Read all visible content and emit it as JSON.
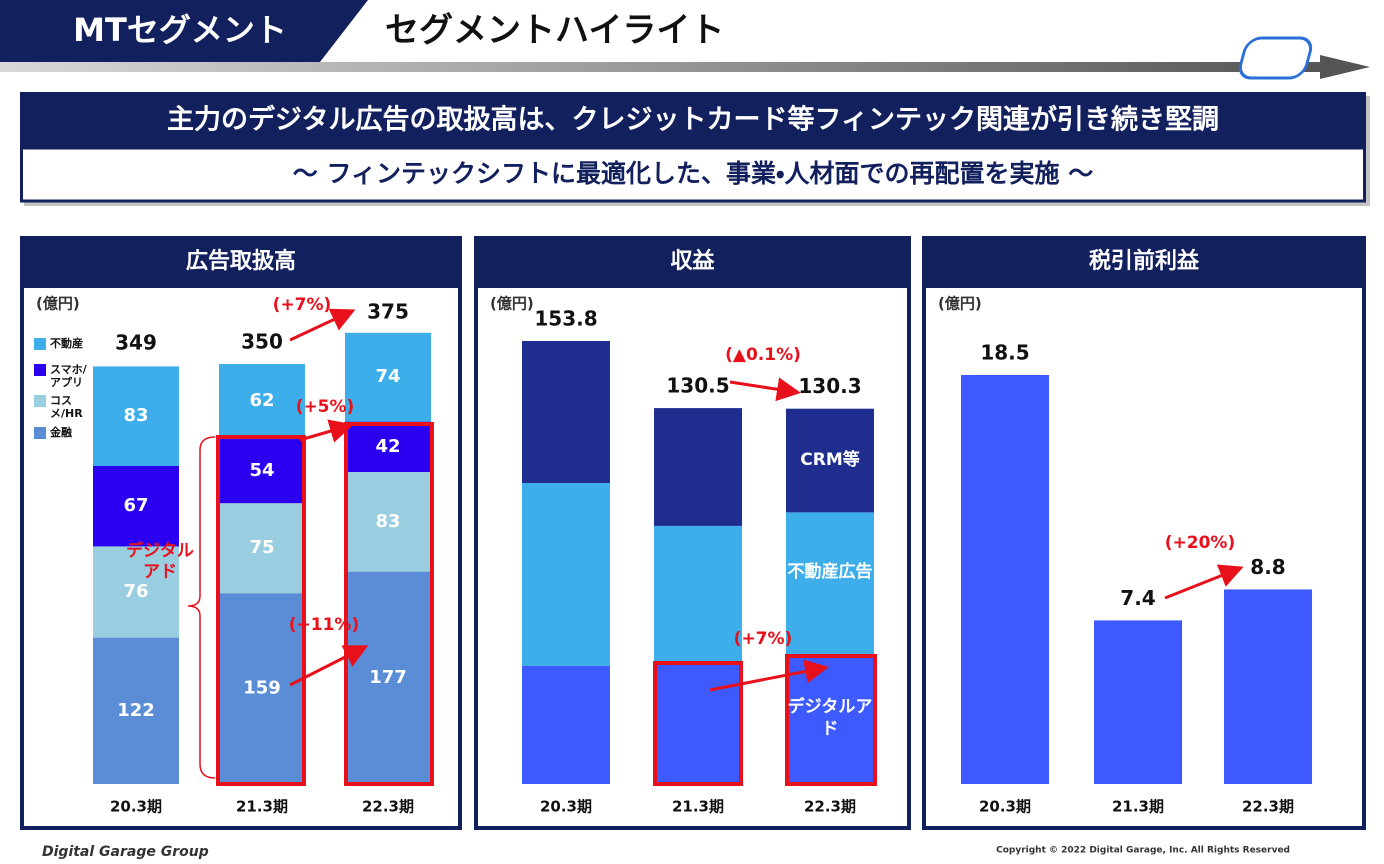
{
  "header": {
    "section": "MTセグメント",
    "title": "セグメントハイライト"
  },
  "banner": {
    "headline": "主力のデジタル広告の取扱高は、クレジットカード等フィンテック関連が引き続き堅調",
    "subline": "～ フィンテックシフトに最適化した、事業・人材面での再配置を実施 ～"
  },
  "chart_data": [
    {
      "type": "bar",
      "stacked": true,
      "title": "広告取扱高",
      "unit": "(億円)",
      "segment_labels": "values",
      "legend": "upper-left",
      "categories": [
        "20.3期",
        "21.3期",
        "22.3期"
      ],
      "series": [
        {
          "name": "金融",
          "color": "#5b8dd6",
          "values": [
            122,
            159,
            177
          ]
        },
        {
          "name": "コスメ/HR",
          "color": "#99cde0",
          "values": [
            76,
            75,
            83
          ]
        },
        {
          "name": "スマホ/アプリ",
          "color": "#2b00f0",
          "values": [
            67,
            54,
            42
          ]
        },
        {
          "name": "不動産",
          "color": "#3daee9",
          "values": [
            83,
            62,
            74
          ]
        }
      ],
      "totals": [
        349,
        350,
        375
      ],
      "annotations": [
        "(+7%)",
        "(+5%)",
        "(+11%)",
        "デジタルアド"
      ]
    },
    {
      "type": "bar",
      "stacked": true,
      "title": "収益",
      "unit": "(億円)",
      "segment_labels": "names",
      "categories": [
        "20.3期",
        "21.3期",
        "22.3期"
      ],
      "series": [
        {
          "name": "デジタルアド",
          "color": "#3d5afe",
          "values": [
            41,
            42.4,
            44.9
          ]
        },
        {
          "name": "不動産広告",
          "color": "#3daee9",
          "values": [
            63.5,
            47.2,
            49.4
          ]
        },
        {
          "name": "CRM等",
          "color": "#1f2d8f",
          "values": [
            49.3,
            40.9,
            36
          ]
        }
      ],
      "totals": [
        153.8,
        130.5,
        130.3
      ],
      "annotations": [
        "(▲0.1%)",
        "(+7%)"
      ]
    },
    {
      "type": "bar",
      "title": "税引前利益",
      "unit": "(億円)",
      "color": "#3d5afe",
      "categories": [
        "20.3期",
        "21.3期",
        "22.3期"
      ],
      "values": [
        18.5,
        7.4,
        8.8
      ],
      "annotations": [
        "(+20%)"
      ]
    }
  ],
  "footer": {
    "logo": "Digital Garage Group",
    "copyright": "Copyright © 2022 Digital Garage, Inc. All Rights Reserved"
  }
}
